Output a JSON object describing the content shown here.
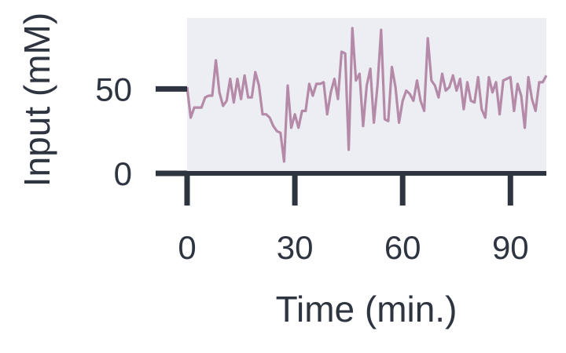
{
  "chart_data": {
    "type": "line",
    "xlabel": "Time (min.)",
    "ylabel": "Input (mM)",
    "xlim": [
      0,
      100
    ],
    "ylim": [
      0,
      92
    ],
    "x_ticks": [
      0,
      30,
      60,
      90
    ],
    "x_tick_labels": [
      "0",
      "30",
      "60",
      "90"
    ],
    "y_ticks": [
      0,
      50
    ],
    "y_tick_labels": [
      "0",
      "50"
    ],
    "grid": false,
    "legend": "none",
    "colors": {
      "line": "#b58aa8",
      "plot_background": "#eceef3",
      "axis": "#2e3440",
      "text": "#2e3440"
    },
    "series": [
      {
        "x": [
          0,
          1,
          2,
          3,
          4,
          5,
          6,
          7,
          8,
          9,
          10,
          11,
          12,
          13,
          14,
          15,
          16,
          17,
          18,
          19,
          20,
          21,
          22,
          23,
          24,
          25,
          26,
          27,
          28,
          29,
          30,
          31,
          32,
          33,
          34,
          35,
          36,
          37,
          38,
          39,
          40,
          41,
          42,
          43,
          44,
          45,
          46,
          47,
          48,
          49,
          50,
          51,
          52,
          53,
          54,
          55,
          56,
          57,
          58,
          59,
          60,
          61,
          62,
          63,
          64,
          65,
          66,
          67,
          68,
          69,
          70,
          71,
          72,
          73,
          74,
          75,
          76,
          77,
          78,
          79,
          80,
          81,
          82,
          83,
          84,
          85,
          86,
          87,
          88,
          89,
          90,
          91,
          92,
          93,
          94,
          95,
          96,
          97,
          98,
          99,
          100
        ],
        "values": [
          51,
          33,
          39,
          39,
          39,
          45,
          46,
          46,
          67,
          48,
          40,
          43,
          56,
          42,
          56,
          44,
          58,
          45,
          45,
          60,
          52,
          35,
          35,
          33,
          28,
          25,
          24,
          7,
          52,
          27,
          35,
          27,
          37,
          37,
          53,
          46,
          53,
          53,
          54,
          35,
          48,
          56,
          44,
          72,
          71,
          14,
          86,
          55,
          59,
          28,
          52,
          62,
          30,
          52,
          85,
          32,
          31,
          63,
          51,
          30,
          43,
          49,
          47,
          43,
          55,
          43,
          37,
          80,
          55,
          52,
          45,
          59,
          49,
          51,
          58,
          49,
          56,
          38,
          54,
          43,
          42,
          57,
          38,
          33,
          57,
          48,
          54,
          35,
          55,
          56,
          57,
          37,
          53,
          46,
          27,
          57,
          44,
          37,
          54,
          54,
          58
        ]
      }
    ]
  }
}
